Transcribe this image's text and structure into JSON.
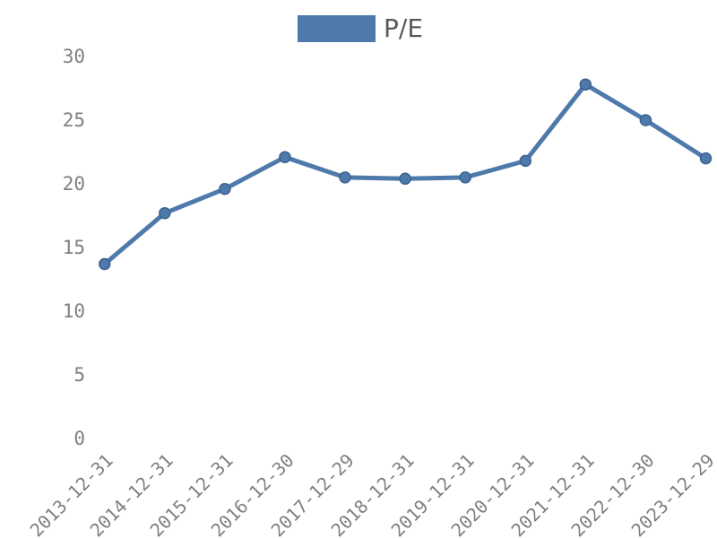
{
  "legend": {
    "label": "P/E",
    "swatch_color": "#4e7aab",
    "text_color": "#595959"
  },
  "chart_data": {
    "type": "line",
    "title": "",
    "xlabel": "",
    "ylabel": "",
    "categories": [
      "2013-12-31",
      "2014-12-31",
      "2015-12-31",
      "2016-12-30",
      "2017-12-29",
      "2018-12-31",
      "2019-12-31",
      "2020-12-31",
      "2021-12-31",
      "2022-12-30",
      "2023-12-29"
    ],
    "series": [
      {
        "name": "P/E",
        "values": [
          13.7,
          17.7,
          19.6,
          22.1,
          20.5,
          20.4,
          20.5,
          21.8,
          27.8,
          25.0,
          22.0
        ]
      }
    ],
    "ylim": [
      0,
      30
    ],
    "yticks": [
      0,
      5,
      10,
      15,
      20,
      25,
      30
    ],
    "grid": false,
    "legend_position": "top-center",
    "x_label_rotation": -45,
    "line_color": "#4e7aab",
    "marker_color": "#4e7aab",
    "marker_stroke_color": "#3c6290",
    "tick_label_color": "#7f7f7f",
    "background_color": "#ffffff"
  }
}
